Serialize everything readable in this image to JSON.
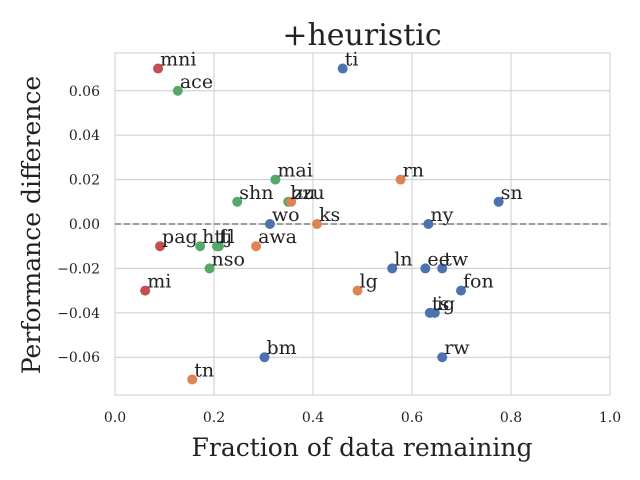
{
  "chart_data": {
    "type": "scatter",
    "title": "+heuristic",
    "xlabel": "Fraction of data remaining",
    "ylabel": "Performance difference",
    "xlim": [
      0.0,
      1.0
    ],
    "ylim": [
      -0.077,
      0.077
    ],
    "xticks": [
      0.0,
      0.2,
      0.4,
      0.6,
      0.8,
      1.0
    ],
    "xtick_labels": [
      "0.0",
      "0.2",
      "0.4",
      "0.6",
      "0.8",
      "1.0"
    ],
    "yticks": [
      -0.06,
      -0.04,
      -0.02,
      0.0,
      0.02,
      0.04,
      0.06
    ],
    "ytick_labels": [
      "−0.06",
      "−0.04",
      "−0.02",
      "0.00",
      "0.02",
      "0.04",
      "0.06"
    ],
    "grid": true,
    "reference_line_y": 0.0,
    "group_colors": {
      "blue": "#4c72b0",
      "orange": "#dd8452",
      "green": "#55a868",
      "red": "#c44e52"
    },
    "points": [
      {
        "label": "mni",
        "x": 0.087,
        "y": 0.07,
        "color": "red"
      },
      {
        "label": "ace",
        "x": 0.127,
        "y": 0.06,
        "color": "green"
      },
      {
        "label": "ti",
        "x": 0.46,
        "y": 0.07,
        "color": "blue"
      },
      {
        "label": "mai",
        "x": 0.324,
        "y": 0.02,
        "color": "green"
      },
      {
        "label": "rn",
        "x": 0.577,
        "y": 0.02,
        "color": "orange"
      },
      {
        "label": "shn",
        "x": 0.247,
        "y": 0.01,
        "color": "green"
      },
      {
        "label": "bzu",
        "x": 0.35,
        "y": 0.01,
        "color": "green"
      },
      {
        "label": "zu",
        "x": 0.356,
        "y": 0.01,
        "color": "orange"
      },
      {
        "label": "sn",
        "x": 0.775,
        "y": 0.01,
        "color": "blue"
      },
      {
        "label": "wo",
        "x": 0.313,
        "y": 0.0,
        "color": "blue"
      },
      {
        "label": "ks",
        "x": 0.408,
        "y": 0.0,
        "color": "orange"
      },
      {
        "label": "ny",
        "x": 0.633,
        "y": 0.0,
        "color": "blue"
      },
      {
        "label": "pag",
        "x": 0.091,
        "y": -0.01,
        "color": "red"
      },
      {
        "label": "ht",
        "x": 0.172,
        "y": -0.01,
        "color": "green"
      },
      {
        "label": "fj",
        "x": 0.206,
        "y": -0.01,
        "color": "green"
      },
      {
        "label": "tl",
        "x": 0.21,
        "y": -0.01,
        "color": "green"
      },
      {
        "label": "awa",
        "x": 0.285,
        "y": -0.01,
        "color": "orange"
      },
      {
        "label": "nso",
        "x": 0.191,
        "y": -0.02,
        "color": "green"
      },
      {
        "label": "ln",
        "x": 0.56,
        "y": -0.02,
        "color": "blue"
      },
      {
        "label": "ee",
        "x": 0.627,
        "y": -0.02,
        "color": "blue"
      },
      {
        "label": "tw",
        "x": 0.661,
        "y": -0.02,
        "color": "blue"
      },
      {
        "label": "mi",
        "x": 0.061,
        "y": -0.03,
        "color": "red"
      },
      {
        "label": "lg",
        "x": 0.49,
        "y": -0.03,
        "color": "orange"
      },
      {
        "label": "fon",
        "x": 0.699,
        "y": -0.03,
        "color": "blue"
      },
      {
        "label": "ts",
        "x": 0.636,
        "y": -0.04,
        "color": "blue"
      },
      {
        "label": "ig",
        "x": 0.646,
        "y": -0.04,
        "color": "blue"
      },
      {
        "label": "bm",
        "x": 0.302,
        "y": -0.06,
        "color": "blue"
      },
      {
        "label": "rw",
        "x": 0.661,
        "y": -0.06,
        "color": "blue"
      },
      {
        "label": "tn",
        "x": 0.156,
        "y": -0.07,
        "color": "orange"
      }
    ]
  }
}
